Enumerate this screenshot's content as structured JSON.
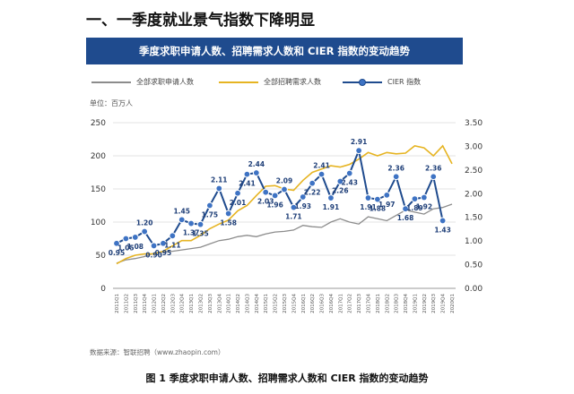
{
  "heading": "一、一季度就业景气指数下降明显",
  "banner_title": "季度求职申请人数、招聘需求人数和 CIER 指数的变动趋势",
  "unit_label": "单位：百万人",
  "source_text": "数据来源：智联招聘（www.zhaopin.com）",
  "figure_caption": "图 1  季度求职申请人数、招聘需求人数和 CIER 指数的变动趋势",
  "colors": {
    "applicants": "#8c8c8c",
    "demand": "#e6b422",
    "cier": "#1f4b8e",
    "cier_marker": "#3e73c4",
    "grid": "#e3e3e3"
  },
  "chart_data": {
    "type": "line",
    "title": "季度求职申请人数、招聘需求人数和 CIER 指数的变动趋势",
    "categories": [
      "2011Q1",
      "2011Q2",
      "2011Q3",
      "2011Q4",
      "2012Q1",
      "2012Q2",
      "2012Q3",
      "2012Q4",
      "2013Q1",
      "2013Q2",
      "2013Q3",
      "2013Q4",
      "2014Q1",
      "2014Q2",
      "2014Q3",
      "2014Q4",
      "2015Q1",
      "2015Q2",
      "2015Q3",
      "2015Q4",
      "2016Q1",
      "2016Q2",
      "2016Q3",
      "2016Q4",
      "2017Q1",
      "2017Q2",
      "2017Q3",
      "2017Q4",
      "2018Q1",
      "2018Q2",
      "2018Q3",
      "2018Q4",
      "2019Q1",
      "2019Q2",
      "2019Q3",
      "2019Q4",
      "2020Q1"
    ],
    "y_left": {
      "ticks": [
        0,
        50,
        100,
        150,
        200,
        250
      ],
      "min": 0,
      "max": 250
    },
    "y_right": {
      "ticks": [
        "0.00",
        "0.50",
        "1.00",
        "1.50",
        "2.00",
        "2.50",
        "3.00",
        "3.50"
      ],
      "min": 0,
      "max": 3.5
    },
    "series": [
      {
        "name": "全部求职申请人数",
        "axis": "left",
        "values": [
          38,
          43,
          45,
          48,
          53,
          55,
          56,
          58,
          60,
          62,
          67,
          72,
          74,
          78,
          80,
          78,
          82,
          85,
          86,
          88,
          95,
          93,
          92,
          100,
          105,
          100,
          97,
          108,
          105,
          102,
          110,
          118,
          115,
          112,
          120,
          122,
          127
        ]
      },
      {
        "name": "全部招聘需求人数",
        "axis": "left",
        "values": [
          37,
          45,
          50,
          52,
          52,
          56,
          64,
          72,
          72,
          80,
          90,
          97,
          103,
          117,
          125,
          140,
          154,
          155,
          150,
          148,
          163,
          175,
          180,
          185,
          183,
          187,
          195,
          205,
          200,
          205,
          203,
          204,
          215,
          212,
          200,
          215,
          188
        ]
      },
      {
        "name": "CIER 指数",
        "axis": "right",
        "values": [
          0.95,
          1.05,
          1.08,
          1.2,
          0.9,
          0.95,
          1.11,
          1.45,
          1.37,
          1.35,
          1.75,
          2.11,
          1.58,
          2.01,
          2.41,
          2.44,
          2.03,
          1.96,
          2.09,
          1.71,
          1.93,
          2.22,
          2.41,
          1.91,
          2.26,
          2.43,
          2.91,
          1.91,
          1.88,
          1.97,
          2.36,
          1.68,
          1.89,
          1.92,
          2.36,
          1.43,
          null
        ]
      }
    ],
    "cier_labels": [
      {
        "i": 0,
        "t": "0.95"
      },
      {
        "i": 1,
        "t": "1.05"
      },
      {
        "i": 2,
        "t": "1.08"
      },
      {
        "i": 3,
        "t": "1.20"
      },
      {
        "i": 4,
        "t": "0.90"
      },
      {
        "i": 5,
        "t": "0.95"
      },
      {
        "i": 6,
        "t": "1.11"
      },
      {
        "i": 7,
        "t": "1.45"
      },
      {
        "i": 8,
        "t": "1.37"
      },
      {
        "i": 9,
        "t": "1.35"
      },
      {
        "i": 10,
        "t": "1.75"
      },
      {
        "i": 11,
        "t": "2.11"
      },
      {
        "i": 12,
        "t": "1.58"
      },
      {
        "i": 13,
        "t": "2.01"
      },
      {
        "i": 14,
        "t": "2.41"
      },
      {
        "i": 15,
        "t": "2.44"
      },
      {
        "i": 16,
        "t": "2.03"
      },
      {
        "i": 17,
        "t": "1.96"
      },
      {
        "i": 18,
        "t": "2.09"
      },
      {
        "i": 19,
        "t": "1.71"
      },
      {
        "i": 20,
        "t": "1.93"
      },
      {
        "i": 21,
        "t": "2.22"
      },
      {
        "i": 22,
        "t": "2.41"
      },
      {
        "i": 23,
        "t": "1.91"
      },
      {
        "i": 24,
        "t": "2.26"
      },
      {
        "i": 25,
        "t": "2.43"
      },
      {
        "i": 26,
        "t": "2.91"
      },
      {
        "i": 27,
        "t": "1.91"
      },
      {
        "i": 28,
        "t": "1.88"
      },
      {
        "i": 29,
        "t": "1.97"
      },
      {
        "i": 30,
        "t": "2.36"
      },
      {
        "i": 31,
        "t": "1.68"
      },
      {
        "i": 32,
        "t": "1.89"
      },
      {
        "i": 33,
        "t": "1.92"
      },
      {
        "i": 34,
        "t": "2.36"
      },
      {
        "i": 35,
        "t": "1.43"
      }
    ],
    "x_tick_labels": [
      "2011Q1",
      "2011Q2",
      "2011Q3",
      "2011Q4",
      "2012Q1",
      "2012Q2",
      "2012Q3",
      "2012Q4",
      "2013Q1",
      "2013Q2",
      "2013Q3",
      "2013Q4",
      "2014Q1",
      "2014Q2",
      "2014Q3",
      "2014Q4",
      "2015Q1",
      "2015Q2",
      "2015Q3",
      "2015Q4",
      "2016Q1",
      "2016Q2",
      "2016Q3",
      "2016Q4",
      "2017Q1",
      "2017Q2",
      "2017Q3",
      "2017Q4",
      "2018Q1",
      "2018Q2",
      "2018Q3",
      "2018Q4",
      "2019Q1",
      "2019Q2",
      "2019Q3",
      "2019Q4",
      "2020Q1"
    ],
    "grid": true,
    "legend_position": "top"
  }
}
